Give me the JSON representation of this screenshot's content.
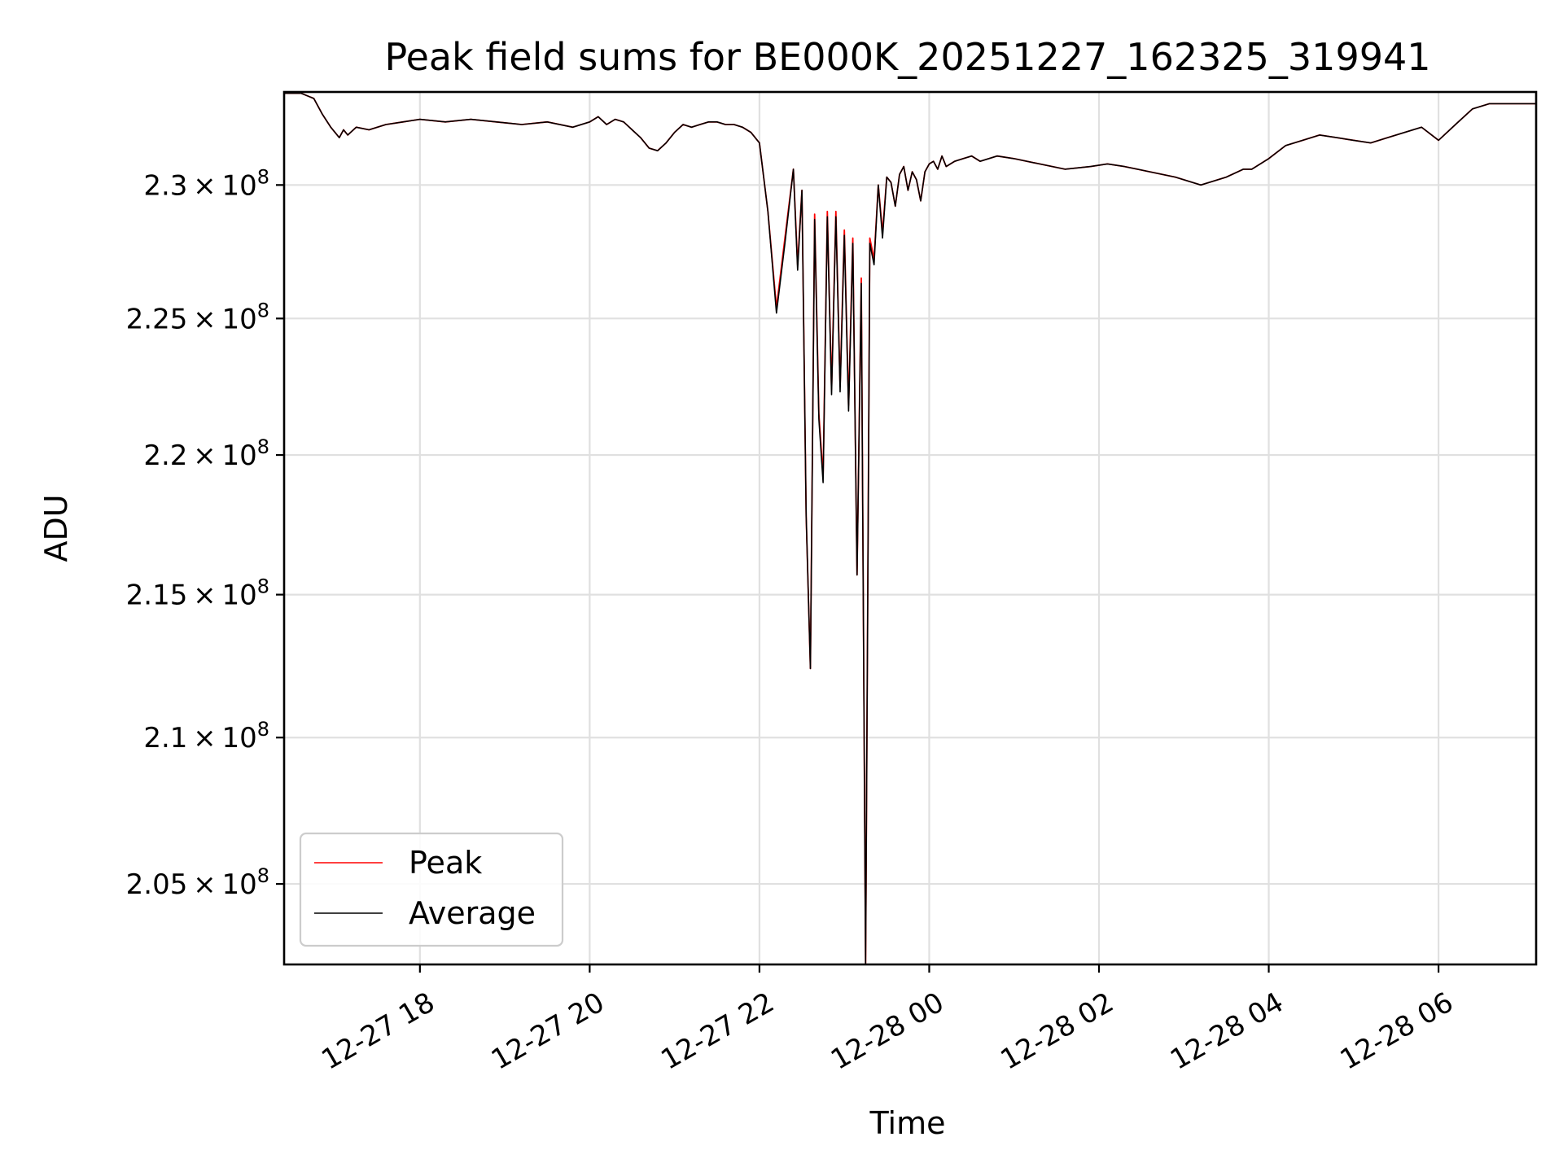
{
  "chart_data": {
    "type": "line",
    "title": "Peak field sums for BE000K_20251227_162325_319941",
    "xlabel": "Time",
    "ylabel": "ADU",
    "x_ticks": [
      "12-27 18",
      "12-27 20",
      "12-27 22",
      "12-28 00",
      "12-28 02",
      "12-28 04",
      "12-28 06"
    ],
    "y_ticks": [
      {
        "value": 205000000,
        "mantissa": "2.05",
        "exponent": "8"
      },
      {
        "value": 210000000,
        "mantissa": "2.1",
        "exponent": "8"
      },
      {
        "value": 215000000,
        "mantissa": "2.15",
        "exponent": "8"
      },
      {
        "value": 220000000,
        "mantissa": "2.2",
        "exponent": "8"
      },
      {
        "value": 225000000,
        "mantissa": "2.25",
        "exponent": "8"
      },
      {
        "value": 230000000,
        "mantissa": "2.3",
        "exponent": "8"
      }
    ],
    "xlim_hours_since_12_27_00": [
      16.4,
      31.15
    ],
    "ylim": [
      202300000,
      233550000
    ],
    "y_scale": "log",
    "grid": true,
    "legend_position": "lower-left",
    "series": [
      {
        "name": "Peak",
        "color": "#ff0000",
        "x_hours": [
          16.4,
          16.6,
          16.75,
          16.85,
          16.95,
          17.05,
          17.1,
          17.15,
          17.25,
          17.4,
          17.6,
          17.8,
          18.0,
          18.3,
          18.6,
          18.9,
          19.2,
          19.5,
          19.8,
          20.0,
          20.1,
          20.2,
          20.3,
          20.4,
          20.5,
          20.6,
          20.7,
          20.8,
          20.9,
          21.0,
          21.1,
          21.2,
          21.3,
          21.4,
          21.5,
          21.6,
          21.7,
          21.8,
          21.9,
          22.0,
          22.1,
          22.2,
          22.3,
          22.4,
          22.45,
          22.5,
          22.55,
          22.6,
          22.65,
          22.7,
          22.75,
          22.8,
          22.85,
          22.9,
          22.95,
          23.0,
          23.05,
          23.1,
          23.15,
          23.2,
          23.25,
          23.3,
          23.35,
          23.4,
          23.45,
          23.5,
          23.55,
          23.6,
          23.65,
          23.7,
          23.75,
          23.8,
          23.85,
          23.9,
          23.95,
          24.0,
          24.05,
          24.1,
          24.15,
          24.2,
          24.3,
          24.4,
          24.5,
          24.6,
          24.8,
          25.0,
          25.3,
          25.6,
          25.9,
          26.1,
          26.3,
          26.6,
          26.9,
          27.2,
          27.5,
          27.7,
          27.8,
          27.9,
          28.0,
          28.2,
          28.4,
          28.6,
          28.8,
          29.0,
          29.2,
          29.4,
          29.6,
          29.8,
          30.0,
          30.2,
          30.4,
          30.6,
          30.8,
          31.0,
          31.15
        ],
        "values": [
          233500000,
          233500000,
          233300000,
          232700000,
          232200000,
          231800000,
          232100000,
          231900000,
          232200000,
          232100000,
          232300000,
          232400000,
          232500000,
          232400000,
          232500000,
          232400000,
          232300000,
          232400000,
          232200000,
          232400000,
          232600000,
          232300000,
          232500000,
          232400000,
          232100000,
          231800000,
          231400000,
          231300000,
          231600000,
          232000000,
          232300000,
          232200000,
          232300000,
          232400000,
          232400000,
          232300000,
          232300000,
          232200000,
          232000000,
          231600000,
          229000000,
          225400000,
          228000000,
          230600000,
          227000000,
          229800000,
          217800000,
          212400000,
          228900000,
          221500000,
          219200000,
          229000000,
          222400000,
          229000000,
          222500000,
          228300000,
          221800000,
          228000000,
          215700000,
          226500000,
          202300000,
          228000000,
          227200000,
          230000000,
          228200000,
          230300000,
          230100000,
          229200000,
          230400000,
          230700000,
          229800000,
          230500000,
          230200000,
          229400000,
          230500000,
          230800000,
          230900000,
          230600000,
          231100000,
          230700000,
          230900000,
          231000000,
          231100000,
          230900000,
          231100000,
          231000000,
          230800000,
          230600000,
          230700000,
          230800000,
          230700000,
          230500000,
          230300000,
          230000000,
          230300000,
          230600000,
          230600000,
          230800000,
          231000000,
          231500000,
          231700000,
          231900000,
          231800000,
          231700000,
          231600000,
          231800000,
          232000000,
          232200000,
          231700000,
          232300000,
          232900000,
          233100000,
          233100000,
          233100000,
          233100000
        ]
      },
      {
        "name": "Average",
        "color": "#000000",
        "x_hours": [
          16.4,
          16.6,
          16.75,
          16.85,
          16.95,
          17.05,
          17.1,
          17.15,
          17.25,
          17.4,
          17.6,
          17.8,
          18.0,
          18.3,
          18.6,
          18.9,
          19.2,
          19.5,
          19.8,
          20.0,
          20.1,
          20.2,
          20.3,
          20.4,
          20.5,
          20.6,
          20.7,
          20.8,
          20.9,
          21.0,
          21.1,
          21.2,
          21.3,
          21.4,
          21.5,
          21.6,
          21.7,
          21.8,
          21.9,
          22.0,
          22.1,
          22.2,
          22.3,
          22.4,
          22.45,
          22.5,
          22.55,
          22.6,
          22.65,
          22.7,
          22.75,
          22.8,
          22.85,
          22.9,
          22.95,
          23.0,
          23.05,
          23.1,
          23.15,
          23.2,
          23.25,
          23.3,
          23.35,
          23.4,
          23.45,
          23.5,
          23.55,
          23.6,
          23.65,
          23.7,
          23.75,
          23.8,
          23.85,
          23.9,
          23.95,
          24.0,
          24.05,
          24.1,
          24.15,
          24.2,
          24.3,
          24.4,
          24.5,
          24.6,
          24.8,
          25.0,
          25.3,
          25.6,
          25.9,
          26.1,
          26.3,
          26.6,
          26.9,
          27.2,
          27.5,
          27.7,
          27.8,
          27.9,
          28.0,
          28.2,
          28.4,
          28.6,
          28.8,
          29.0,
          29.2,
          29.4,
          29.6,
          29.8,
          30.0,
          30.2,
          30.4,
          30.6,
          30.8,
          31.0,
          31.15
        ],
        "values": [
          233500000,
          233500000,
          233300000,
          232700000,
          232200000,
          231800000,
          232100000,
          231900000,
          232200000,
          232100000,
          232300000,
          232400000,
          232500000,
          232400000,
          232500000,
          232400000,
          232300000,
          232400000,
          232200000,
          232400000,
          232600000,
          232300000,
          232500000,
          232400000,
          232100000,
          231800000,
          231400000,
          231300000,
          231600000,
          232000000,
          232300000,
          232200000,
          232300000,
          232400000,
          232400000,
          232300000,
          232300000,
          232200000,
          232000000,
          231600000,
          229000000,
          225200000,
          227800000,
          230600000,
          226800000,
          229800000,
          217800000,
          212400000,
          228700000,
          221300000,
          219000000,
          228800000,
          222200000,
          228800000,
          222300000,
          228100000,
          221600000,
          227800000,
          215700000,
          226300000,
          202300000,
          227800000,
          227000000,
          230000000,
          228000000,
          230300000,
          230100000,
          229200000,
          230400000,
          230700000,
          229800000,
          230500000,
          230200000,
          229400000,
          230500000,
          230800000,
          230900000,
          230600000,
          231100000,
          230700000,
          230900000,
          231000000,
          231100000,
          230900000,
          231100000,
          231000000,
          230800000,
          230600000,
          230700000,
          230800000,
          230700000,
          230500000,
          230300000,
          230000000,
          230300000,
          230600000,
          230600000,
          230800000,
          231000000,
          231500000,
          231700000,
          231900000,
          231800000,
          231700000,
          231600000,
          231800000,
          232000000,
          232200000,
          231700000,
          232300000,
          232900000,
          233100000,
          233100000,
          233100000,
          233100000
        ]
      }
    ]
  }
}
